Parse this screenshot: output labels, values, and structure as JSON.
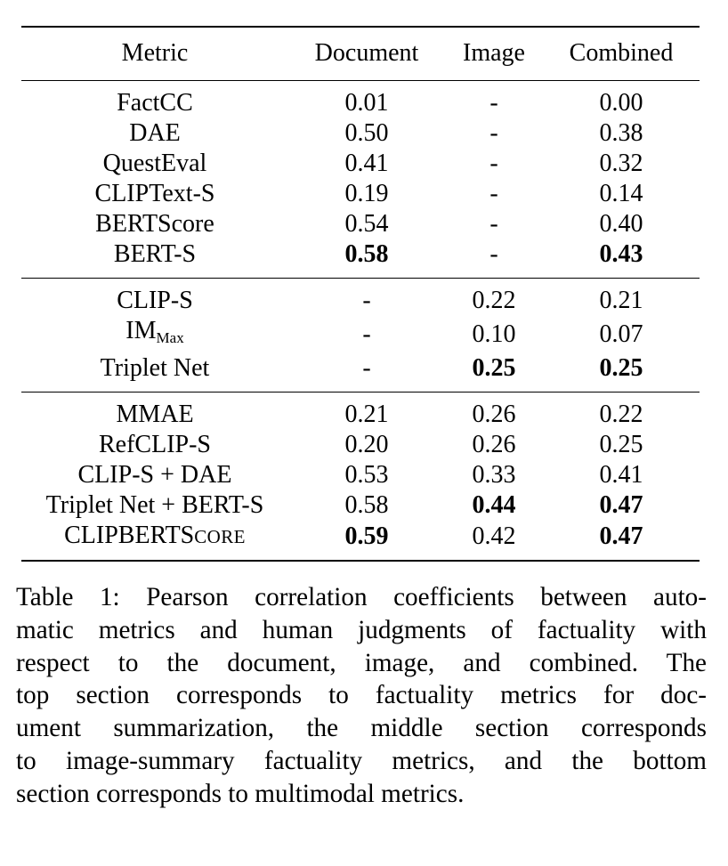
{
  "table": {
    "headers": [
      "Metric",
      "Document",
      "Image",
      "Combined"
    ],
    "sections": [
      {
        "rows": [
          {
            "metric": "FactCC",
            "document": "0.01",
            "image": "-",
            "combined": "0.00",
            "bold": []
          },
          {
            "metric": "DAE",
            "document": "0.50",
            "image": "-",
            "combined": "0.38",
            "bold": []
          },
          {
            "metric": "QuestEval",
            "document": "0.41",
            "image": "-",
            "combined": "0.32",
            "bold": []
          },
          {
            "metric": "CLIPText-S",
            "document": "0.19",
            "image": "-",
            "combined": "0.14",
            "bold": []
          },
          {
            "metric": "BERTScore",
            "document": "0.54",
            "image": "-",
            "combined": "0.40",
            "bold": []
          },
          {
            "metric": "BERT-S",
            "document": "0.58",
            "image": "-",
            "combined": "0.43",
            "bold": [
              "document",
              "combined"
            ]
          }
        ]
      },
      {
        "rows": [
          {
            "metric": "CLIP-S",
            "document": "-",
            "image": "0.22",
            "combined": "0.21",
            "bold": []
          },
          {
            "metric": "IM",
            "metric_sub": "Max",
            "document": "-",
            "image": "0.10",
            "combined": "0.07",
            "bold": []
          },
          {
            "metric": "Triplet Net",
            "document": "-",
            "image": "0.25",
            "combined": "0.25",
            "bold": [
              "image",
              "combined"
            ]
          }
        ]
      },
      {
        "rows": [
          {
            "metric": "MMAE",
            "document": "0.21",
            "image": "0.26",
            "combined": "0.22",
            "bold": []
          },
          {
            "metric": "RefCLIP-S",
            "document": "0.20",
            "image": "0.26",
            "combined": "0.25",
            "bold": []
          },
          {
            "metric": "CLIP-S + DAE",
            "document": "0.53",
            "image": "0.33",
            "combined": "0.41",
            "bold": []
          },
          {
            "metric": "Triplet Net + BERT-S",
            "document": "0.58",
            "image": "0.44",
            "combined": "0.47",
            "bold": [
              "image",
              "combined"
            ]
          },
          {
            "metric": "CLIPBERTS",
            "metric_smallcaps": "CORE",
            "document": "0.59",
            "image": "0.42",
            "combined": "0.47",
            "bold": [
              "document",
              "combined"
            ]
          }
        ]
      }
    ]
  },
  "caption": {
    "lines": [
      "Table 1: Pearson correlation coefficients between auto-",
      "matic metrics and human judgments of factuality with",
      "respect to the document, image, and combined.  The",
      "top section corresponds to factuality metrics for doc-",
      "ument summarization, the middle section corresponds",
      "to image-summary factuality metrics, and the bottom",
      "section corresponds to multimodal metrics."
    ]
  }
}
